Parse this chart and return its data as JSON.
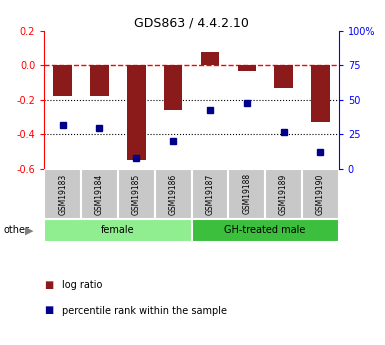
{
  "title": "GDS863 / 4.4.2.10",
  "samples": [
    "GSM19183",
    "GSM19184",
    "GSM19185",
    "GSM19186",
    "GSM19187",
    "GSM19188",
    "GSM19189",
    "GSM19190"
  ],
  "log_ratio": [
    -0.175,
    -0.175,
    -0.55,
    -0.26,
    0.08,
    -0.03,
    -0.13,
    -0.33
  ],
  "percentile_rank": [
    32,
    30,
    8,
    20,
    43,
    48,
    27,
    12
  ],
  "groups": [
    {
      "label": "female",
      "start": 0,
      "end": 4,
      "color": "#90EE90"
    },
    {
      "label": "GH-treated male",
      "start": 4,
      "end": 8,
      "color": "#3CBF3C"
    }
  ],
  "bar_color": "#8B1A1A",
  "dot_color": "#00008B",
  "ylim_left": [
    -0.6,
    0.2
  ],
  "ylim_right": [
    0,
    100
  ],
  "yticks_left": [
    -0.6,
    -0.4,
    -0.2,
    0.0,
    0.2
  ],
  "yticks_right": [
    0,
    25,
    50,
    75,
    100
  ],
  "ytick_labels_right": [
    "0",
    "25",
    "50",
    "75",
    "100%"
  ],
  "hline_y": 0.0,
  "dotted_lines": [
    -0.2,
    -0.4
  ],
  "bar_width": 0.5,
  "legend_log_ratio": "log ratio",
  "legend_percentile": "percentile rank within the sample",
  "other_label": "other"
}
